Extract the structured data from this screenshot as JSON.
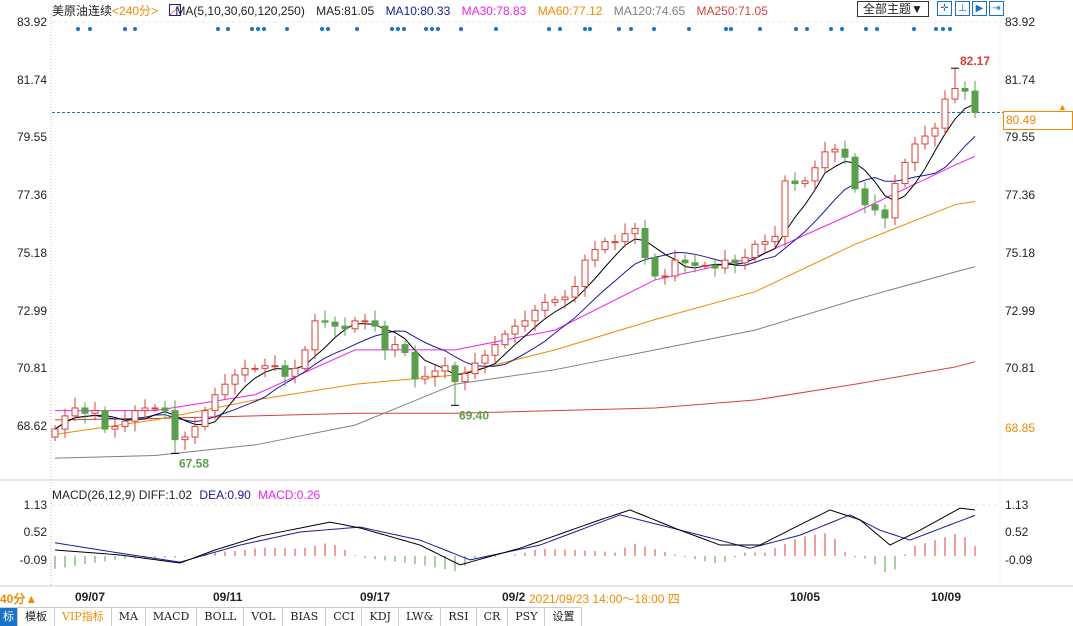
{
  "header": {
    "symbol": "美原油连续",
    "period": "<240分>",
    "ma_label": "MA(5,10,30,60,120,250)",
    "ma5": "MA5:81.05",
    "ma10": "MA10:80.33",
    "ma30": "MA30:78.83",
    "ma60": "MA60:77.12",
    "ma120": "MA120:74.65",
    "ma250": "MA250:71.05",
    "theme_button": "全部主题▼",
    "tool_icons": [
      "crosshair-icon",
      "zoom-in-icon",
      "zoom-out-icon",
      "move-right-icon"
    ]
  },
  "macd_header": {
    "label": "MACD(26,12,9)",
    "diff": "DIFF:1.02",
    "dea": "DEA:0.90",
    "macd": "MACD:0.26"
  },
  "price_axis": {
    "left_ticks": [
      "83.92",
      "81.74",
      "79.55",
      "77.36",
      "75.18",
      "72.99",
      "70.81",
      "68.62"
    ],
    "right_ticks": [
      "83.92",
      "81.74",
      "79.55",
      "77.36",
      "75.18",
      "72.99",
      "70.81"
    ],
    "current_price": "80.49",
    "right_bottom_label": "68.85"
  },
  "macd_axis": {
    "ticks": [
      "1.13",
      "0.52",
      "-0.09"
    ]
  },
  "x_axis": {
    "labels": [
      "09/07",
      "09/11",
      "09/17",
      "09/2",
      "10/05",
      "10/09"
    ],
    "period_indicator": "40分▲",
    "hover_time": "2021/09/23 14:00～18:00 四"
  },
  "tabs": [
    "标",
    "模板",
    "VIP指标",
    "MA",
    "MACD",
    "BOLL",
    "VOL",
    "BIAS",
    "CCI",
    "KDJ",
    "LW&",
    "RSI",
    "CR",
    "PSY",
    "设置"
  ],
  "colors": {
    "up": "#d9413a",
    "down": "#5a9e4e",
    "ma5": "#000000",
    "ma10": "#1a1a9c",
    "ma30": "#ee22ee",
    "ma60": "#f08a00",
    "ma120": "#808080",
    "ma250": "#d9413a",
    "accent": "#1a73c9",
    "current": "#f08a00"
  },
  "chart_data": [
    {
      "type": "candlestick",
      "ylim": [
        67.0,
        83.92
      ],
      "closes": [
        68.5,
        69.0,
        69.3,
        69.1,
        69.2,
        68.5,
        68.6,
        68.8,
        69.2,
        69.3,
        69.3,
        69.2,
        68.1,
        68.2,
        68.6,
        69.2,
        69.8,
        70.2,
        70.55,
        70.8,
        70.8,
        70.9,
        70.9,
        70.5,
        70.8,
        71.5,
        72.6,
        72.55,
        72.4,
        72.3,
        72.6,
        72.6,
        72.4,
        71.5,
        71.7,
        71.4,
        70.4,
        70.5,
        70.7,
        70.9,
        70.3,
        70.6,
        71.0,
        71.3,
        71.7,
        72.1,
        72.4,
        72.6,
        73.0,
        73.3,
        73.4,
        73.5,
        73.9,
        74.9,
        75.3,
        75.6,
        75.6,
        75.9,
        76.1,
        75.0,
        74.3,
        74.3,
        74.9,
        74.8,
        74.7,
        74.7,
        74.6,
        74.9,
        74.8,
        75.0,
        75.5,
        75.6,
        75.8,
        77.9,
        77.8,
        77.9,
        78.4,
        79.0,
        79.1,
        78.8,
        77.6,
        77.0,
        76.8,
        76.5,
        77.8,
        78.6,
        79.3,
        79.6,
        79.9,
        81.0,
        81.4,
        81.3,
        80.49
      ],
      "first_open": 68.2,
      "annotations": [
        {
          "bar": 12,
          "low": 67.58,
          "label": "67.58"
        },
        {
          "bar": 40,
          "low": 69.4,
          "label": "69.40"
        },
        {
          "bar": 90,
          "high": 82.17,
          "label": "82.17"
        }
      ],
      "ma_series": {
        "ma30": [
          [
            0,
            69.2
          ],
          [
            10,
            69.2
          ],
          [
            20,
            69.8
          ],
          [
            30,
            71.5
          ],
          [
            40,
            71.5
          ],
          [
            50,
            72.25
          ],
          [
            60,
            74.15
          ],
          [
            70,
            75.0
          ],
          [
            80,
            76.7
          ],
          [
            90,
            78.5
          ],
          [
            92,
            78.83
          ]
        ],
        "ma60": [
          [
            0,
            68.3
          ],
          [
            10,
            68.85
          ],
          [
            20,
            69.6
          ],
          [
            30,
            70.2
          ],
          [
            40,
            70.55
          ],
          [
            50,
            71.5
          ],
          [
            60,
            72.65
          ],
          [
            70,
            73.7
          ],
          [
            80,
            75.5
          ],
          [
            90,
            77.0
          ],
          [
            92,
            77.12
          ]
        ],
        "ma120": [
          [
            0,
            67.4
          ],
          [
            10,
            67.5
          ],
          [
            20,
            67.9
          ],
          [
            30,
            68.65
          ],
          [
            40,
            70.2
          ],
          [
            50,
            70.75
          ],
          [
            60,
            71.5
          ],
          [
            70,
            72.25
          ],
          [
            80,
            73.4
          ],
          [
            90,
            74.45
          ],
          [
            92,
            74.65
          ]
        ],
        "ma250": [
          [
            0,
            68.85
          ],
          [
            10,
            68.9
          ],
          [
            20,
            69.0
          ],
          [
            30,
            69.1
          ],
          [
            40,
            69.1
          ],
          [
            50,
            69.2
          ],
          [
            60,
            69.3
          ],
          [
            70,
            69.6
          ],
          [
            80,
            70.2
          ],
          [
            90,
            70.85
          ],
          [
            92,
            71.05
          ]
        ]
      },
      "event_marker_bars": [
        2.3,
        3.5,
        7,
        8,
        16.3,
        17.3,
        19.7,
        20.3,
        20.9,
        23.2,
        26.7,
        27.3,
        30.2,
        33.7,
        34.3,
        34.9,
        37.1,
        37.7,
        38.3,
        40.6,
        44.1,
        49.4,
        50.5,
        53,
        53.5,
        56.4,
        57.6,
        59.9,
        63.4,
        67.1,
        67.6,
        70.5,
        74.1,
        75.2,
        77.6,
        78.7,
        81.1,
        82.2,
        85.9,
        88.1,
        88.8,
        89.5
      ]
    },
    {
      "type": "line",
      "title": "MACD(26,12,9)",
      "ylim": [
        -0.4,
        1.13
      ],
      "diff": [
        [
          0,
          0.13
        ],
        [
          6.5,
          0.02
        ],
        [
          12.5,
          -0.16
        ],
        [
          16,
          0.13
        ],
        [
          20.5,
          0.44
        ],
        [
          27.5,
          0.75
        ],
        [
          30.5,
          0.62
        ],
        [
          36.5,
          0.24
        ],
        [
          40.5,
          -0.2
        ],
        [
          46.5,
          0.17
        ],
        [
          54.5,
          0.8
        ],
        [
          57.5,
          1.02
        ],
        [
          62.5,
          0.57
        ],
        [
          66.5,
          0.24
        ],
        [
          70.5,
          0.24
        ],
        [
          74.5,
          0.69
        ],
        [
          77.5,
          1.02
        ],
        [
          80.5,
          0.8
        ],
        [
          83.5,
          0.24
        ],
        [
          86.5,
          0.57
        ],
        [
          90.5,
          1.06
        ],
        [
          92,
          1.02
        ]
      ],
      "dea": [
        [
          0,
          0.29
        ],
        [
          6.5,
          0.06
        ],
        [
          12.5,
          -0.14
        ],
        [
          18.5,
          0.24
        ],
        [
          24.5,
          0.53
        ],
        [
          30.5,
          0.64
        ],
        [
          36.5,
          0.35
        ],
        [
          41.5,
          -0.09
        ],
        [
          48.5,
          0.24
        ],
        [
          56.5,
          0.91
        ],
        [
          64.5,
          0.46
        ],
        [
          69.5,
          0.17
        ],
        [
          74.5,
          0.46
        ],
        [
          79.5,
          0.91
        ],
        [
          82.5,
          0.57
        ],
        [
          85.5,
          0.35
        ],
        [
          92,
          0.9
        ]
      ]
    }
  ]
}
